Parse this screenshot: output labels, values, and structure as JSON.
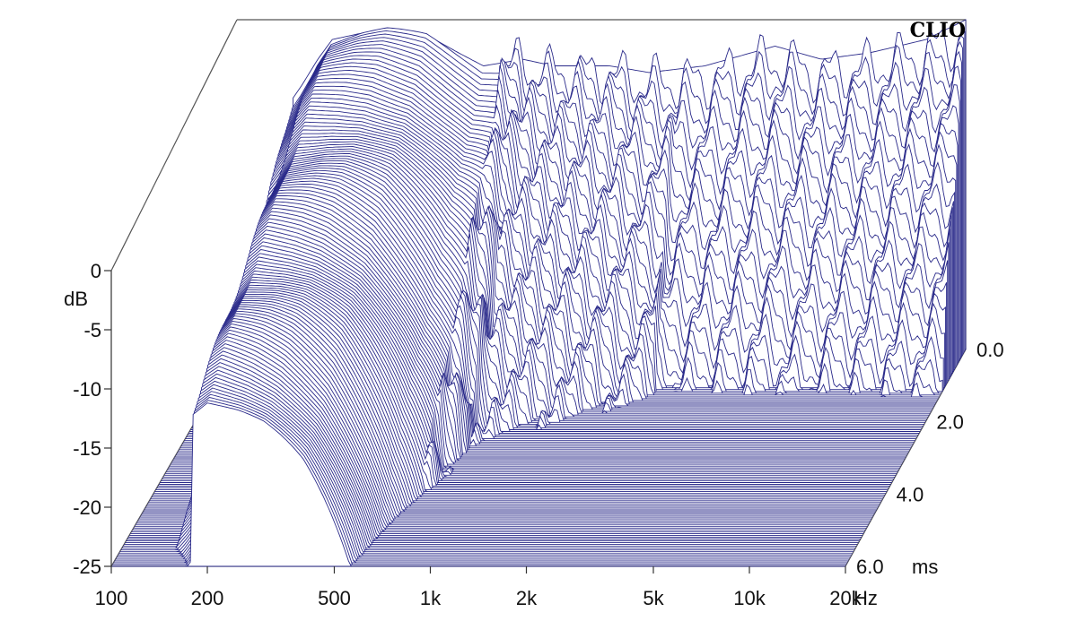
{
  "chart_data": {
    "type": "waterfall",
    "brand": "CLIO",
    "x_axis": {
      "scale": "log",
      "range": [
        100,
        20000
      ],
      "ticks": [
        {
          "value": 100,
          "label": "100"
        },
        {
          "value": 200,
          "label": "200"
        },
        {
          "value": 500,
          "label": "500"
        },
        {
          "value": 1000,
          "label": "1k"
        },
        {
          "value": 2000,
          "label": "2k"
        },
        {
          "value": 5000,
          "label": "5k"
        },
        {
          "value": 10000,
          "label": "10k"
        },
        {
          "value": 20000,
          "label": "20k"
        }
      ],
      "unit": "Hz"
    },
    "y_axis": {
      "range": [
        -25,
        0
      ],
      "ticks": [
        {
          "value": 0,
          "label": "0"
        },
        {
          "value": -5,
          "label": "-5"
        },
        {
          "value": -10,
          "label": "-10"
        },
        {
          "value": -15,
          "label": "-15"
        },
        {
          "value": -20,
          "label": "-20"
        },
        {
          "value": -25,
          "label": "-25"
        }
      ],
      "unit": "dB"
    },
    "z_axis": {
      "range": [
        0,
        6
      ],
      "ticks": [
        {
          "value": 0,
          "label": "0.0"
        },
        {
          "value": 2,
          "label": "2.0"
        },
        {
          "value": 4,
          "label": "4.0"
        },
        {
          "value": 6,
          "label": "6.0"
        }
      ],
      "unit": "ms"
    },
    "series_count": 120,
    "first_slice_response_db": [
      [
        140,
        -7
      ],
      [
        160,
        -5
      ],
      [
        180,
        -3
      ],
      [
        200,
        -1.5
      ],
      [
        250,
        -1
      ],
      [
        300,
        -0.8
      ],
      [
        400,
        -1.2
      ],
      [
        500,
        -2.5
      ],
      [
        600,
        -3.5
      ],
      [
        800,
        -3
      ],
      [
        1000,
        -3.5
      ],
      [
        1500,
        -3.5
      ],
      [
        2000,
        -4
      ],
      [
        3000,
        -3.5
      ],
      [
        5000,
        -2
      ],
      [
        7000,
        -3
      ],
      [
        10000,
        -2.5
      ],
      [
        15000,
        -1.5
      ],
      [
        20000,
        0
      ]
    ],
    "colors": {
      "line": "#2a2a8a",
      "face": "#ffffff",
      "axis": "#333333",
      "frame": "#555555",
      "text": "#111111"
    }
  }
}
